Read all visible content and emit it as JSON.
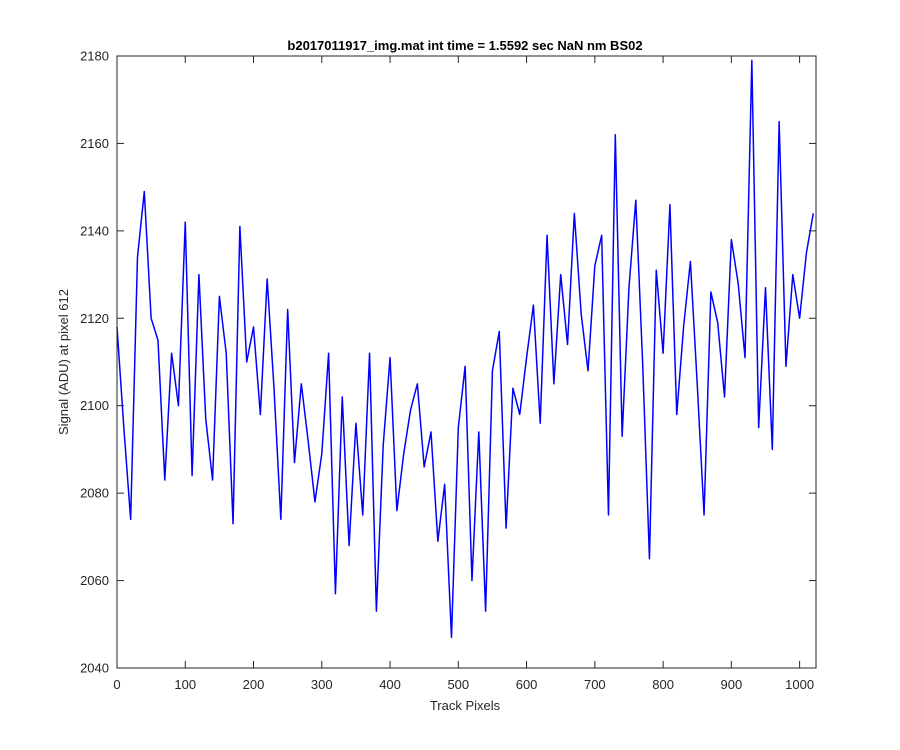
{
  "chart_data": {
    "type": "line",
    "title": "b2017011917_img.mat int time = 1.5592 sec  NaN nm BS02",
    "xlabel": "Track Pixels",
    "ylabel": "Signal (ADU) at pixel 612",
    "xlim": [
      0,
      1024
    ],
    "ylim": [
      2040,
      2180
    ],
    "x_ticks": [
      0,
      100,
      200,
      300,
      400,
      500,
      600,
      700,
      800,
      900,
      1000
    ],
    "y_ticks": [
      2040,
      2060,
      2080,
      2100,
      2120,
      2140,
      2160,
      2180
    ],
    "grid": false,
    "legend": "none",
    "series": [
      {
        "color": "#0000ff",
        "x": [
          0,
          10,
          20,
          30,
          40,
          50,
          60,
          70,
          80,
          90,
          100,
          110,
          120,
          130,
          140,
          150,
          160,
          170,
          180,
          190,
          200,
          210,
          220,
          230,
          240,
          250,
          260,
          270,
          280,
          290,
          300,
          310,
          320,
          330,
          340,
          350,
          360,
          370,
          380,
          390,
          400,
          410,
          420,
          430,
          440,
          450,
          460,
          470,
          480,
          490,
          500,
          510,
          520,
          530,
          540,
          550,
          560,
          570,
          580,
          590,
          600,
          610,
          620,
          630,
          640,
          650,
          660,
          670,
          680,
          690,
          700,
          710,
          720,
          730,
          740,
          750,
          760,
          770,
          780,
          790,
          800,
          810,
          820,
          830,
          840,
          850,
          860,
          870,
          880,
          890,
          900,
          910,
          920,
          930,
          940,
          950,
          960,
          970,
          980,
          990,
          1000,
          1010,
          1020
        ],
        "y": [
          2118,
          2095,
          2074,
          2134,
          2149,
          2120,
          2115,
          2083,
          2112,
          2100,
          2142,
          2084,
          2130,
          2097,
          2083,
          2125,
          2112,
          2073,
          2141,
          2110,
          2118,
          2098,
          2129,
          2104,
          2074,
          2122,
          2087,
          2105,
          2092,
          2078,
          2089,
          2112,
          2057,
          2102,
          2068,
          2096,
          2075,
          2112,
          2053,
          2091,
          2111,
          2076,
          2089,
          2099,
          2105,
          2086,
          2094,
          2069,
          2082,
          2047,
          2095,
          2109,
          2060,
          2094,
          2053,
          2108,
          2117,
          2072,
          2104,
          2098,
          2111,
          2123,
          2096,
          2139,
          2105,
          2130,
          2114,
          2144,
          2121,
          2108,
          2132,
          2139,
          2075,
          2162,
          2093,
          2127,
          2147,
          2110,
          2065,
          2131,
          2112,
          2146,
          2098,
          2118,
          2133,
          2105,
          2075,
          2126,
          2119,
          2102,
          2138,
          2128,
          2111,
          2179,
          2095,
          2127,
          2090,
          2165,
          2109,
          2130,
          2120,
          2135,
          2144
        ]
      }
    ]
  }
}
